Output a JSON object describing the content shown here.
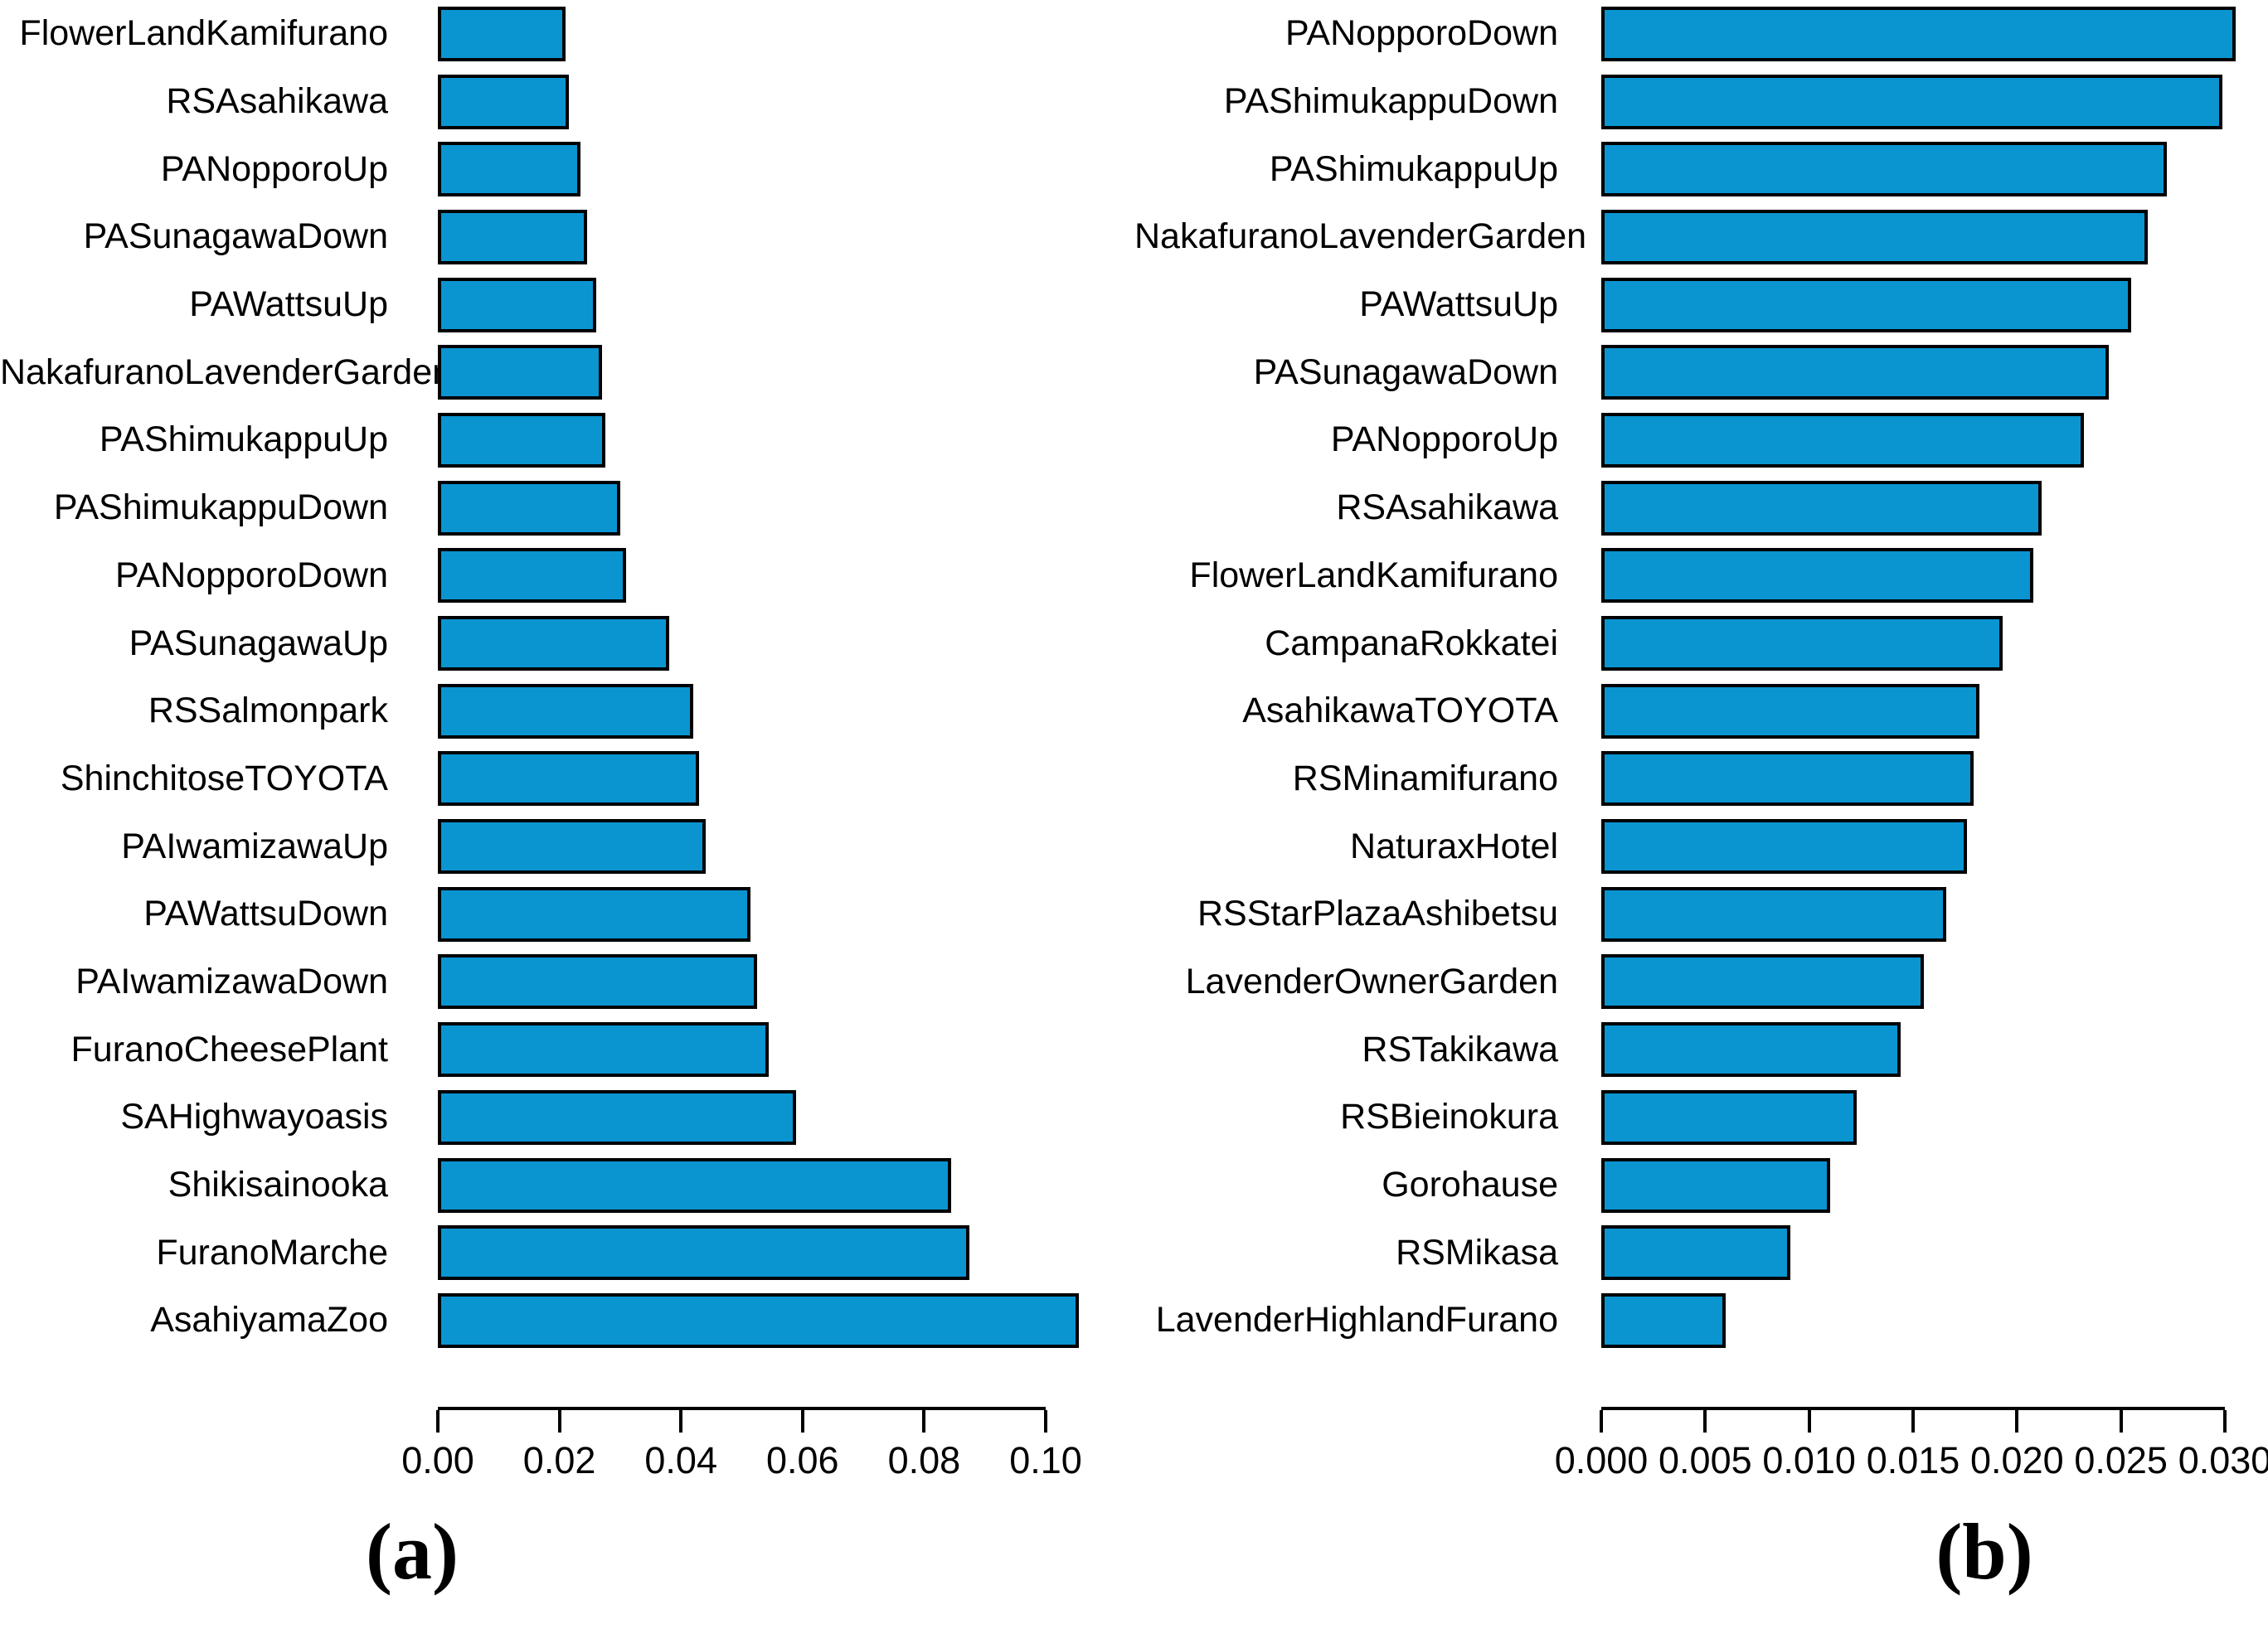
{
  "figure": {
    "captions": [
      "(a)",
      "(b)"
    ],
    "colors": {
      "bar_fill": "#0a95d1",
      "bar_border": "#000000",
      "text": "#000000",
      "background": "#ffffff"
    }
  },
  "chart_data": [
    {
      "type": "bar",
      "orientation": "horizontal",
      "panel": "a",
      "title": "",
      "xlabel": "",
      "ylabel": "",
      "grid": false,
      "legend": false,
      "xlim": [
        0,
        0.1065
      ],
      "ticks": [
        0.0,
        0.02,
        0.04,
        0.06,
        0.08,
        0.1
      ],
      "tick_labels": [
        "0.00",
        "0.02",
        "0.04",
        "0.06",
        "0.08",
        "0.10"
      ],
      "categories": [
        "FlowerLandKamifurano",
        "RSAsahikawa",
        "PANopporoUp",
        "PASunagawaDown",
        "PAWattsuUp",
        "NakafuranoLavenderGarden",
        "PAShimukappuUp",
        "PAShimukappuDown",
        "PANopporoDown",
        "PASunagawaUp",
        "RSSalmonpark",
        "ShinchitoseTOYOTA",
        "PAIwamizawaUp",
        "PAWattsuDown",
        "PAIwamizawaDown",
        "FuranoCheesePlant",
        "SAHighwayoasis",
        "Shikisainooka",
        "FuranoMarche",
        "AsahiyamaZoo"
      ],
      "values": [
        0.021,
        0.0215,
        0.0235,
        0.0245,
        0.026,
        0.027,
        0.0275,
        0.03,
        0.031,
        0.038,
        0.042,
        0.043,
        0.044,
        0.0515,
        0.0525,
        0.0545,
        0.059,
        0.0845,
        0.0875,
        0.1055
      ]
    },
    {
      "type": "bar",
      "orientation": "horizontal",
      "panel": "b",
      "title": "",
      "xlabel": "",
      "ylabel": "",
      "grid": false,
      "legend": false,
      "xlim": [
        0,
        0.0308
      ],
      "ticks": [
        0.0,
        0.005,
        0.01,
        0.015,
        0.02,
        0.025,
        0.03
      ],
      "tick_labels": [
        "0.000",
        "0.005",
        "0.010",
        "0.015",
        "0.020",
        "0.025",
        "0.030"
      ],
      "categories": [
        "PANopporoDown",
        "PAShimukappuDown",
        "PAShimukappuUp",
        "NakafuranoLavenderGarden",
        "PAWattsuUp",
        "PASunagawaDown",
        "PANopporoUp",
        "RSAsahikawa",
        "FlowerLandKamifurano",
        "CampanaRokkatei",
        "AsahikawaTOYOTA",
        "RSMinamifurano",
        "NaturaxHotel",
        "RSStarPlazaAshibetsu",
        "LavenderOwnerGarden",
        "RSTakikawa",
        "RSBieinokura",
        "Gorohause",
        "RSMikasa",
        "LavenderHighlandFurano"
      ],
      "values": [
        0.0305,
        0.0299,
        0.0272,
        0.0263,
        0.0255,
        0.0244,
        0.0232,
        0.0212,
        0.0208,
        0.0193,
        0.0182,
        0.0179,
        0.0176,
        0.0166,
        0.0155,
        0.0144,
        0.0123,
        0.011,
        0.0091,
        0.006
      ]
    }
  ]
}
